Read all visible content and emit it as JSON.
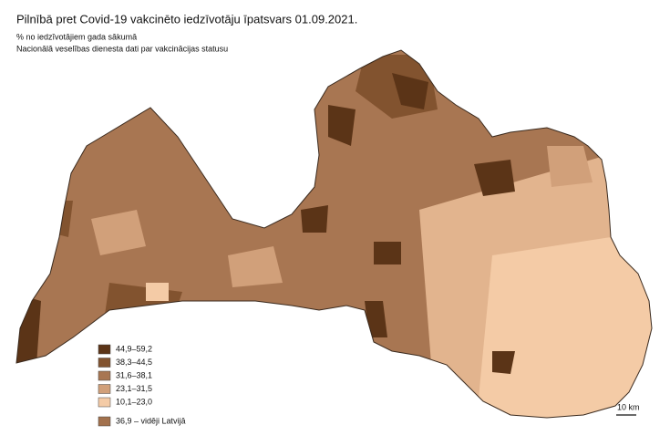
{
  "header": {
    "title": "Pilnībā pret Covid-19 vakcinēto iedzīvotāju īpatsvars 01.09.2021.",
    "subtitles": [
      "% no iedzīvotājiem gada sākumā",
      "Nacionālā veselības dienesta dati par vakcinācijas statusu"
    ]
  },
  "legend": {
    "items": [
      {
        "label": "44,9–59,2",
        "color": "#5b3417"
      },
      {
        "label": "38,3–44,5",
        "color": "#82532f"
      },
      {
        "label": "31,6–38,1",
        "color": "#a87652"
      },
      {
        "label": "23,1–31,5",
        "color": "#d1a07a"
      },
      {
        "label": "10,1–23,0",
        "color": "#f4cba6"
      }
    ],
    "average": {
      "label": "36,9 – vidēji Latvijā",
      "color": "#a2714d"
    }
  },
  "scale_bar": {
    "label": "10 km"
  }
}
